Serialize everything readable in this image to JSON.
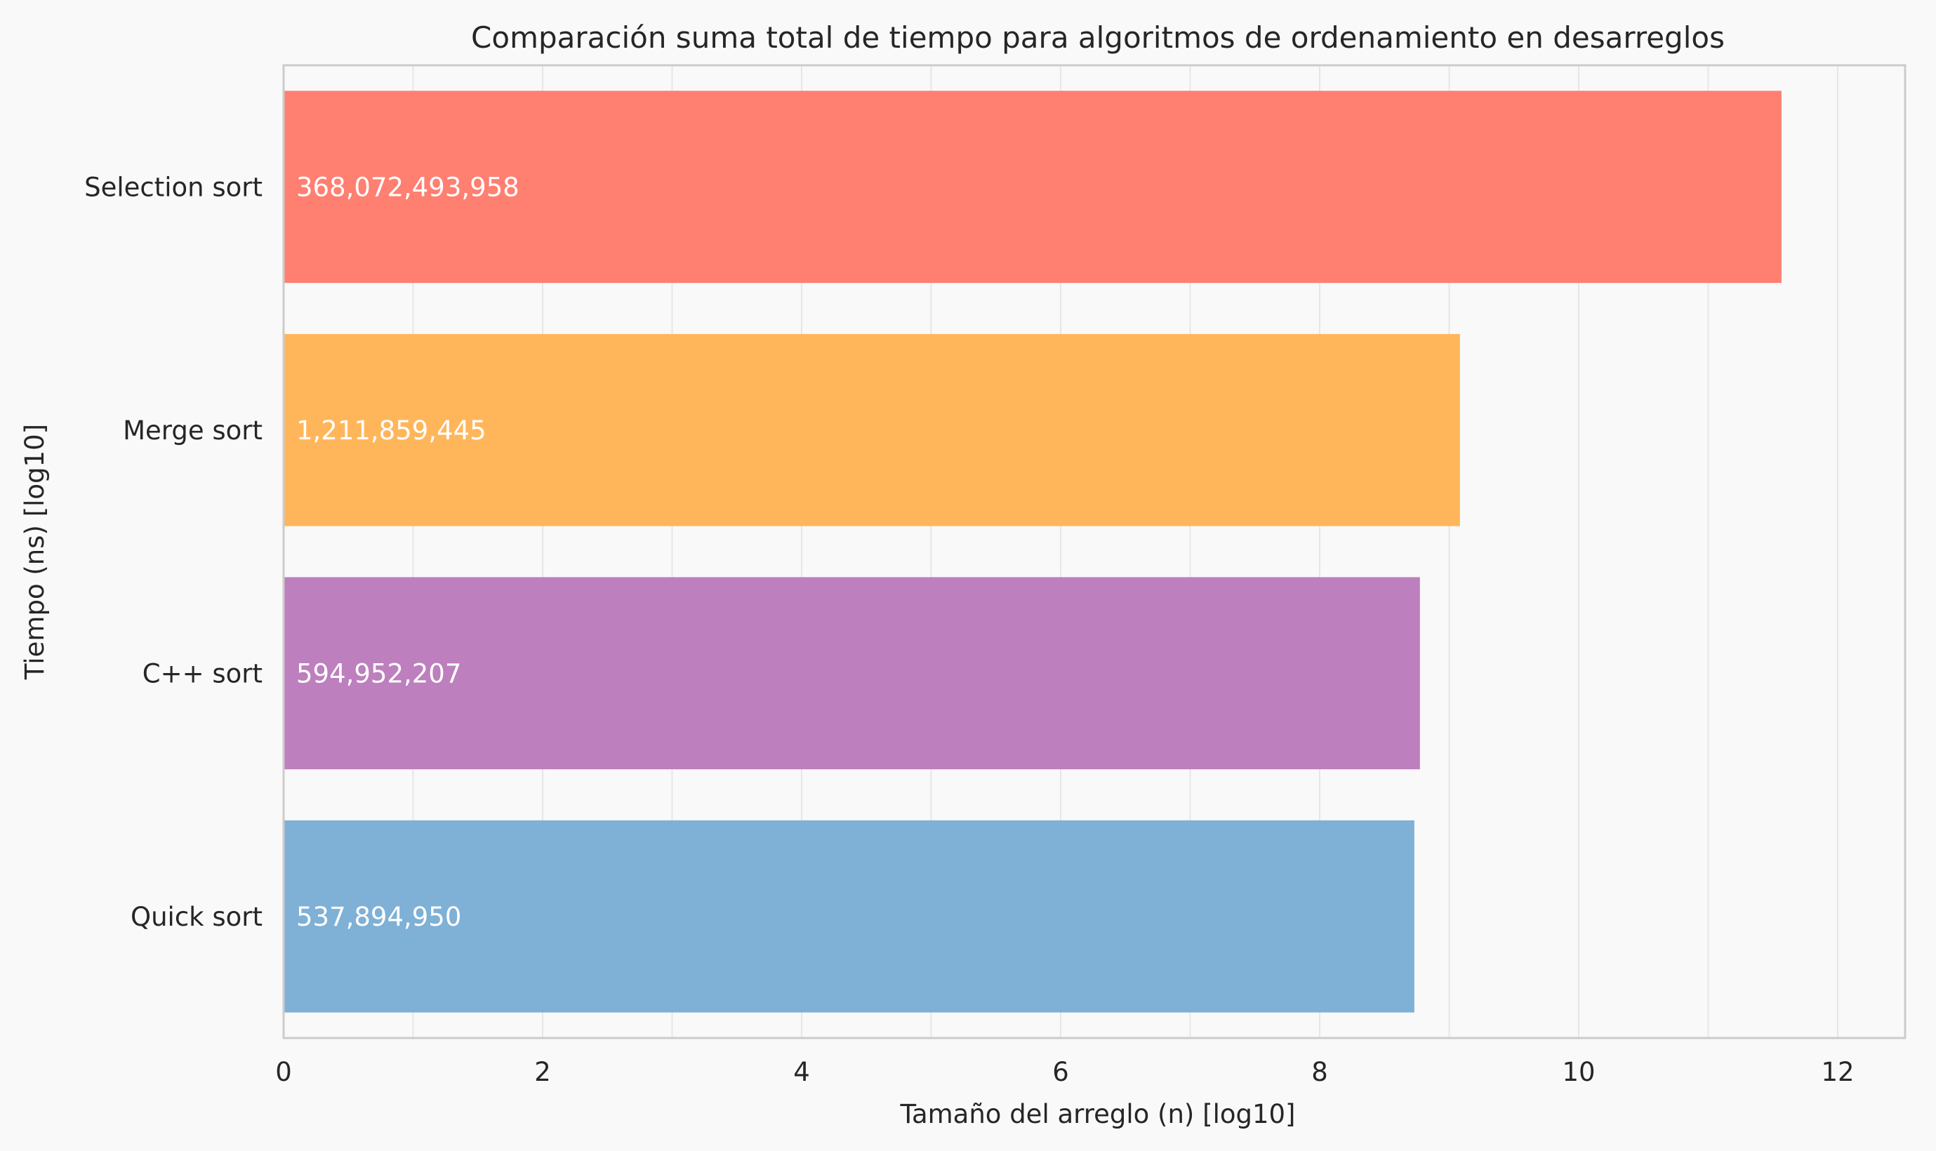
{
  "chart_data": {
    "type": "bar",
    "orientation": "horizontal",
    "title": "Comparación suma total de tiempo para algoritmos de ordenamiento en desarreglos",
    "xlabel": "Tamaño del arreglo (n) [log10]",
    "ylabel": "Tiempo (ns) [log10]",
    "xlim": [
      0,
      12.5
    ],
    "xticks": [
      0,
      2,
      4,
      6,
      8,
      10,
      12
    ],
    "grid": true,
    "categories": [
      "Selection sort",
      "Merge sort",
      "C++ sort",
      "Quick sort"
    ],
    "values": [
      11.566,
      9.083,
      8.774,
      8.731
    ],
    "bar_labels": [
      "368,072,493,958",
      "1,211,859,445",
      "594,952,207",
      "537,894,950"
    ],
    "colors": [
      "#ff7f71",
      "#ffb65b",
      "#bd7fbd",
      "#7fb0d6"
    ]
  }
}
